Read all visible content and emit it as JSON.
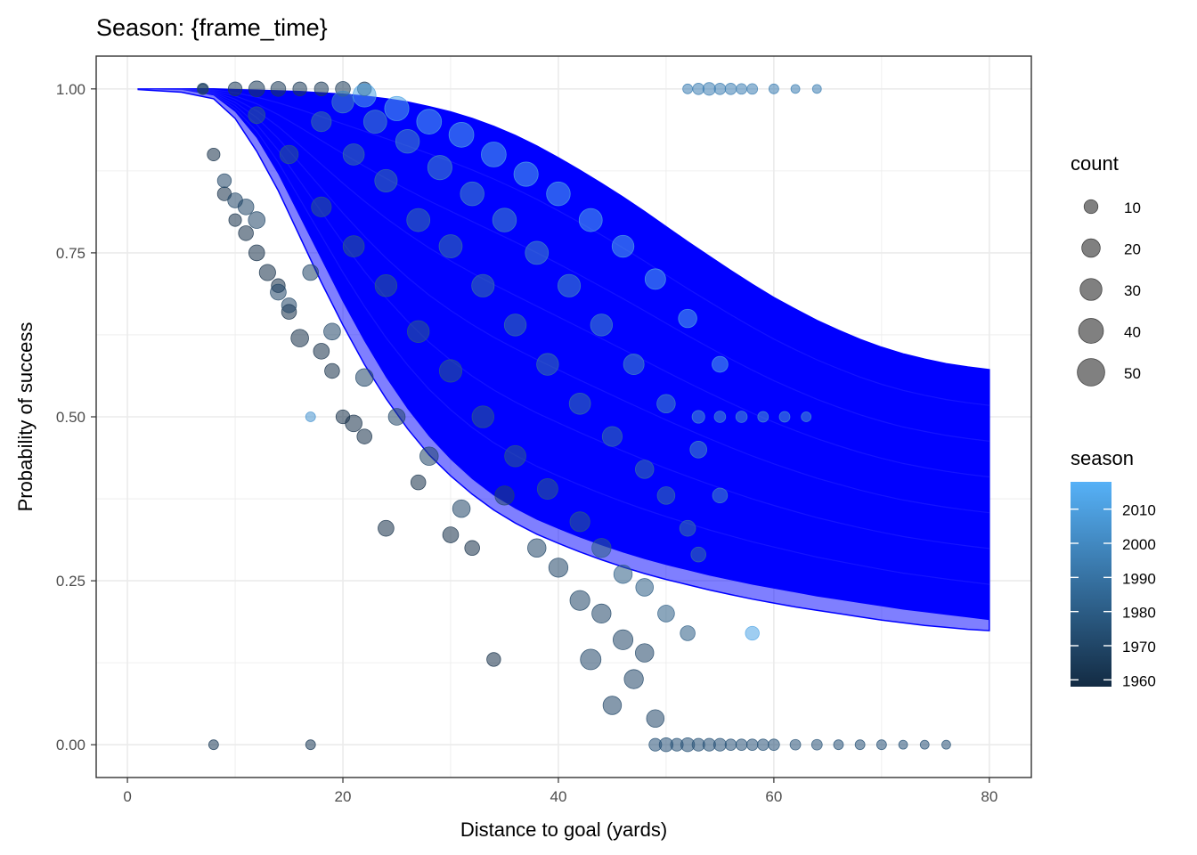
{
  "chart_data": {
    "type": "scatter",
    "title": "Season: {frame_time}",
    "xlabel": "Distance to goal (yards)",
    "ylabel": "Probability of success",
    "xlim": [
      -2.9,
      83.9
    ],
    "ylim": [
      -0.05,
      1.05
    ],
    "x_ticks": [
      0,
      20,
      40,
      60,
      80
    ],
    "x_tick_labels": [
      "0",
      "20",
      "40",
      "60",
      "80"
    ],
    "y_ticks": [
      0,
      0.25,
      0.5,
      0.75,
      1
    ],
    "y_tick_labels": [
      "0.00",
      "0.25",
      "0.50",
      "0.75",
      "1.00"
    ],
    "grid": true,
    "background": "#ffffff",
    "grid_color": "#ebebeb",
    "band_color": "#0000ff",
    "band": {
      "x": [
        1,
        5,
        8,
        10,
        12,
        14,
        16,
        18,
        20,
        22,
        24,
        26,
        28,
        30,
        32,
        34,
        36,
        38,
        40,
        42,
        44,
        46,
        48,
        50,
        52,
        54,
        56,
        58,
        60,
        62,
        64,
        66,
        68,
        70,
        72,
        74,
        76,
        78,
        80
      ],
      "upper": [
        1.0,
        1.0,
        1.0,
        0.999,
        0.998,
        0.997,
        0.996,
        0.994,
        0.992,
        0.989,
        0.985,
        0.98,
        0.973,
        0.965,
        0.955,
        0.943,
        0.929,
        0.913,
        0.895,
        0.876,
        0.856,
        0.835,
        0.813,
        0.79,
        0.767,
        0.745,
        0.723,
        0.702,
        0.682,
        0.664,
        0.647,
        0.632,
        0.618,
        0.606,
        0.596,
        0.588,
        0.581,
        0.576,
        0.572
      ],
      "mid_low": [
        1.0,
        0.999,
        0.99,
        0.965,
        0.925,
        0.87,
        0.805,
        0.74,
        0.675,
        0.615,
        0.56,
        0.512,
        0.47,
        0.435,
        0.405,
        0.38,
        0.36,
        0.343,
        0.329,
        0.316,
        0.304,
        0.293,
        0.283,
        0.274,
        0.266,
        0.258,
        0.251,
        0.244,
        0.238,
        0.232,
        0.226,
        0.221,
        0.216,
        0.211,
        0.206,
        0.202,
        0.198,
        0.194,
        0.19
      ],
      "lower": [
        0.999,
        0.995,
        0.985,
        0.955,
        0.905,
        0.845,
        0.775,
        0.705,
        0.64,
        0.58,
        0.528,
        0.482,
        0.442,
        0.41,
        0.382,
        0.358,
        0.338,
        0.321,
        0.307,
        0.294,
        0.282,
        0.271,
        0.261,
        0.252,
        0.244,
        0.236,
        0.229,
        0.222,
        0.216,
        0.21,
        0.205,
        0.2,
        0.195,
        0.19,
        0.186,
        0.182,
        0.179,
        0.176,
        0.174
      ]
    },
    "point_groups": [
      {
        "season": 1960,
        "x": [
          8,
          9,
          10,
          11,
          12,
          13,
          14,
          15,
          16,
          18,
          19,
          20,
          21,
          22,
          24,
          27,
          30,
          32,
          34
        ],
        "y": [
          0.9,
          0.84,
          0.8,
          0.78,
          0.75,
          0.72,
          0.7,
          0.66,
          0.62,
          0.6,
          0.57,
          0.5,
          0.49,
          0.47,
          0.33,
          0.4,
          0.32,
          0.3,
          0.13
        ],
        "count": [
          8,
          10,
          8,
          12,
          14,
          15,
          10,
          12,
          18,
          14,
          12,
          10,
          16,
          12,
          14,
          12,
          14,
          12,
          10
        ]
      },
      {
        "season": 1970,
        "x": [
          7,
          9,
          10,
          11,
          12,
          14,
          15,
          17,
          19,
          22,
          25,
          28,
          31,
          35,
          38,
          40,
          42,
          43,
          44,
          45,
          46,
          47,
          48,
          49
        ],
        "y": [
          1.0,
          0.86,
          0.83,
          0.82,
          0.8,
          0.69,
          0.67,
          0.72,
          0.63,
          0.56,
          0.5,
          0.44,
          0.36,
          0.38,
          0.3,
          0.27,
          0.22,
          0.13,
          0.2,
          0.06,
          0.16,
          0.1,
          0.14,
          0.04
        ],
        "count": [
          6,
          10,
          12,
          14,
          16,
          14,
          12,
          14,
          16,
          18,
          16,
          20,
          18,
          22,
          20,
          22,
          24,
          26,
          22,
          20,
          24,
          22,
          20,
          18
        ]
      },
      {
        "season": 1980,
        "x": [
          12,
          15,
          18,
          21,
          24,
          27,
          30,
          33,
          36,
          39,
          42,
          44,
          46,
          48,
          50,
          52
        ],
        "y": [
          0.96,
          0.9,
          0.82,
          0.76,
          0.7,
          0.63,
          0.57,
          0.5,
          0.44,
          0.39,
          0.34,
          0.3,
          0.26,
          0.24,
          0.2,
          0.17
        ],
        "count": [
          16,
          20,
          24,
          28,
          30,
          30,
          32,
          30,
          28,
          26,
          24,
          22,
          20,
          18,
          16,
          12
        ]
      },
      {
        "season": 1990,
        "x": [
          18,
          21,
          24,
          27,
          30,
          33,
          36,
          39,
          42,
          45,
          48,
          50,
          52,
          53
        ],
        "y": [
          0.95,
          0.9,
          0.86,
          0.8,
          0.76,
          0.7,
          0.64,
          0.58,
          0.52,
          0.47,
          0.42,
          0.38,
          0.33,
          0.29
        ],
        "count": [
          24,
          28,
          32,
          34,
          34,
          32,
          30,
          30,
          28,
          24,
          20,
          18,
          14,
          12
        ]
      },
      {
        "season": 2000,
        "x": [
          20,
          23,
          26,
          29,
          32,
          35,
          38,
          41,
          44,
          47,
          50,
          53,
          55
        ],
        "y": [
          0.98,
          0.95,
          0.92,
          0.88,
          0.84,
          0.8,
          0.75,
          0.7,
          0.64,
          0.58,
          0.52,
          0.45,
          0.38
        ],
        "count": [
          30,
          34,
          36,
          38,
          36,
          36,
          34,
          32,
          30,
          26,
          20,
          16,
          12
        ]
      },
      {
        "season": 2012,
        "x": [
          22,
          25,
          28,
          31,
          34,
          37,
          40,
          43,
          46,
          49,
          52,
          55,
          58
        ],
        "y": [
          0.99,
          0.97,
          0.95,
          0.93,
          0.9,
          0.87,
          0.84,
          0.8,
          0.76,
          0.71,
          0.65,
          0.58,
          0.17
        ],
        "count": [
          34,
          38,
          40,
          40,
          40,
          38,
          36,
          34,
          30,
          26,
          20,
          14,
          10
        ]
      },
      {
        "season": 1965,
        "x": [
          7,
          8,
          10,
          12,
          14,
          16,
          17,
          18,
          20,
          22
        ],
        "y": [
          1.0,
          0.0,
          1.0,
          1.0,
          1.0,
          1.0,
          0.0,
          1.0,
          1.0,
          1.0
        ],
        "count": [
          4,
          4,
          10,
          14,
          12,
          10,
          4,
          10,
          12,
          10
        ]
      },
      {
        "season": 1975,
        "x": [
          49,
          50,
          51,
          52,
          53,
          54,
          55,
          56,
          57,
          58,
          59,
          60,
          62,
          64,
          66,
          68,
          70,
          72,
          74,
          76
        ],
        "y": [
          0.0,
          0.0,
          0.0,
          0.0,
          0.0,
          0.0,
          0.0,
          0.0,
          0.0,
          0.0,
          0.0,
          0.0,
          0.0,
          0.0,
          0.0,
          0.0,
          0.0,
          0.0,
          0.0,
          0.0
        ],
        "count": [
          8,
          10,
          8,
          10,
          8,
          8,
          8,
          6,
          6,
          6,
          6,
          6,
          5,
          5,
          4,
          4,
          4,
          3,
          3,
          3
        ]
      },
      {
        "season": 1995,
        "x": [
          52,
          53,
          54,
          55,
          56,
          57,
          58,
          60,
          62,
          64
        ],
        "y": [
          1.0,
          1.0,
          1.0,
          1.0,
          1.0,
          1.0,
          1.0,
          1.0,
          1.0,
          1.0
        ],
        "count": [
          4,
          6,
          8,
          6,
          6,
          5,
          5,
          4,
          3,
          3
        ]
      },
      {
        "season": 2005,
        "x": [
          53,
          55,
          57,
          59,
          61,
          63,
          17
        ],
        "y": [
          0.5,
          0.5,
          0.5,
          0.5,
          0.5,
          0.5,
          0.5
        ],
        "count": [
          8,
          6,
          6,
          5,
          5,
          4,
          4
        ]
      }
    ]
  },
  "legend": {
    "count": {
      "title": "count",
      "labels": [
        "10",
        "20",
        "30",
        "40",
        "50"
      ],
      "values": [
        10,
        20,
        30,
        40,
        50
      ],
      "color": "#555555"
    },
    "season": {
      "title": "season",
      "labels": [
        "1960",
        "1970",
        "1980",
        "1990",
        "2000",
        "2010"
      ],
      "values": [
        1960,
        1970,
        1980,
        1990,
        2000,
        2010
      ],
      "range": [
        1958,
        2018
      ],
      "color_low": "#132b43",
      "color_high": "#56b1f7"
    }
  }
}
